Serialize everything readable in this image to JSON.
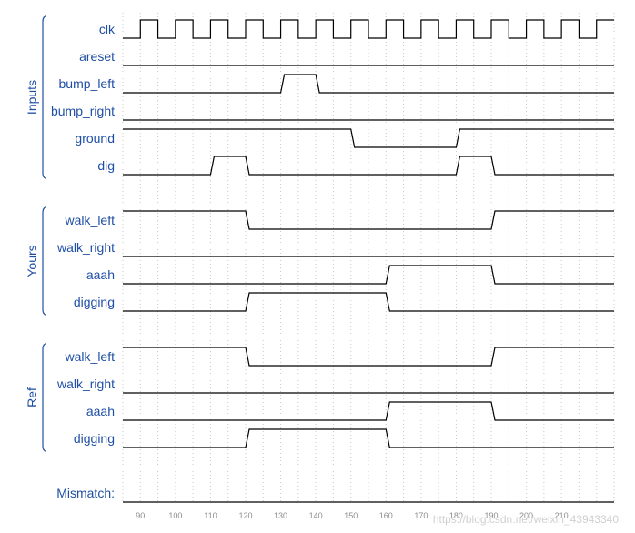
{
  "groups": [
    {
      "label": "Inputs",
      "signals": [
        {
          "label": "clk",
          "type": "clock"
        },
        {
          "label": "areset",
          "type": "binary",
          "initial": 0,
          "transitions": []
        },
        {
          "label": "bump_left",
          "type": "binary",
          "initial": 0,
          "transitions": [
            130,
            140
          ]
        },
        {
          "label": "bump_right",
          "type": "binary",
          "initial": 0,
          "transitions": []
        },
        {
          "label": "ground",
          "type": "binary",
          "initial": 1,
          "transitions": [
            150,
            180
          ]
        },
        {
          "label": "dig",
          "type": "binary",
          "initial": 0,
          "transitions": [
            110,
            120,
            180,
            190
          ]
        }
      ]
    },
    {
      "label": "Yours",
      "signals": [
        {
          "label": "walk_left",
          "type": "binary",
          "initial": 1,
          "transitions": [
            120,
            190
          ]
        },
        {
          "label": "walk_right",
          "type": "binary",
          "initial": 0,
          "transitions": []
        },
        {
          "label": "aaah",
          "type": "binary",
          "initial": 0,
          "transitions": [
            160,
            190
          ]
        },
        {
          "label": "digging",
          "type": "binary",
          "initial": 0,
          "transitions": [
            120,
            160
          ]
        }
      ]
    },
    {
      "label": "Ref",
      "signals": [
        {
          "label": "walk_left",
          "type": "binary",
          "initial": 1,
          "transitions": [
            120,
            190
          ]
        },
        {
          "label": "walk_right",
          "type": "binary",
          "initial": 0,
          "transitions": []
        },
        {
          "label": "aaah",
          "type": "binary",
          "initial": 0,
          "transitions": [
            160,
            190
          ]
        },
        {
          "label": "digging",
          "type": "binary",
          "initial": 0,
          "transitions": [
            120,
            160
          ]
        }
      ]
    }
  ],
  "mismatch": {
    "label": "Mismatch:",
    "type": "binary",
    "initial": 0,
    "transitions": []
  },
  "time_axis": {
    "start": 85,
    "end": 225,
    "clock_period": 10,
    "clock_rise_offset": 5,
    "ticks": [
      90,
      100,
      110,
      120,
      130,
      140,
      150,
      160,
      170,
      180,
      190,
      200,
      210
    ]
  },
  "watermark": "https://blog.csdn.net/weixin_43943340",
  "colors": {
    "label": "#1f4fa5",
    "wave": "#000000",
    "grid": "#c8c8c8",
    "tick": "#8c8c8c"
  }
}
